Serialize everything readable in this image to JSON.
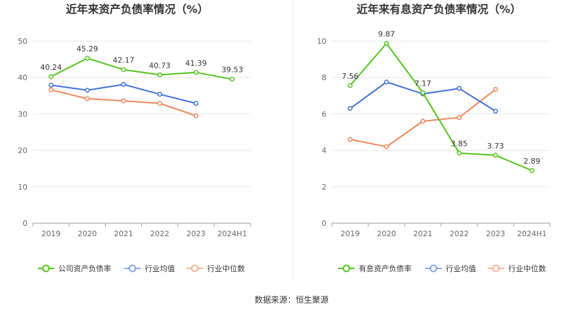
{
  "source_text": "数据来源：恒生聚源",
  "colors": {
    "company": "#52c41a",
    "avg": "#3b6fd6",
    "median": "#f0845c",
    "axis": "#999999",
    "grid": "#e6e6e6",
    "divider": "#e8e8e8"
  },
  "chart_data": [
    {
      "type": "line",
      "title": "近年来资产负债率情况（%）",
      "categories": [
        "2019",
        "2020",
        "2021",
        "2022",
        "2023",
        "2024H1"
      ],
      "ylim": [
        0,
        50
      ],
      "yticks": [
        0,
        10,
        20,
        30,
        40,
        50
      ],
      "grid": true,
      "legend_position": "bottom",
      "series": [
        {
          "name": "公司资产负债率",
          "color_key": "company",
          "values": [
            40.24,
            45.29,
            42.17,
            40.73,
            41.39,
            39.53
          ],
          "labels": [
            "40.24",
            "45.29",
            "42.17",
            "40.73",
            "41.39",
            "39.53"
          ]
        },
        {
          "name": "行业均值",
          "color_key": "avg",
          "values": [
            37.9,
            36.5,
            38.1,
            35.4,
            32.9,
            null
          ],
          "labels": null
        },
        {
          "name": "行业中位数",
          "color_key": "median",
          "values": [
            36.6,
            34.2,
            33.6,
            32.9,
            29.5,
            null
          ],
          "labels": null
        }
      ]
    },
    {
      "type": "line",
      "title": "近年来有息资产负债率情况（%）",
      "categories": [
        "2019",
        "2020",
        "2021",
        "2022",
        "2023",
        "2024H1"
      ],
      "ylim": [
        0,
        10
      ],
      "yticks": [
        0,
        2,
        4,
        6,
        8,
        10
      ],
      "grid": true,
      "legend_position": "bottom",
      "series": [
        {
          "name": "有息资产负债率",
          "color_key": "company",
          "values": [
            7.56,
            9.87,
            7.17,
            3.85,
            3.73,
            2.89
          ],
          "labels": [
            "7.56",
            "9.87",
            "7.17",
            "3.85",
            "3.73",
            "2.89"
          ]
        },
        {
          "name": "行业均值",
          "color_key": "avg",
          "values": [
            6.3,
            7.75,
            7.1,
            7.4,
            6.15,
            null
          ],
          "labels": null
        },
        {
          "name": "行业中位数",
          "color_key": "median",
          "values": [
            4.6,
            4.2,
            5.6,
            5.8,
            7.35,
            null
          ],
          "labels": null
        }
      ]
    }
  ]
}
